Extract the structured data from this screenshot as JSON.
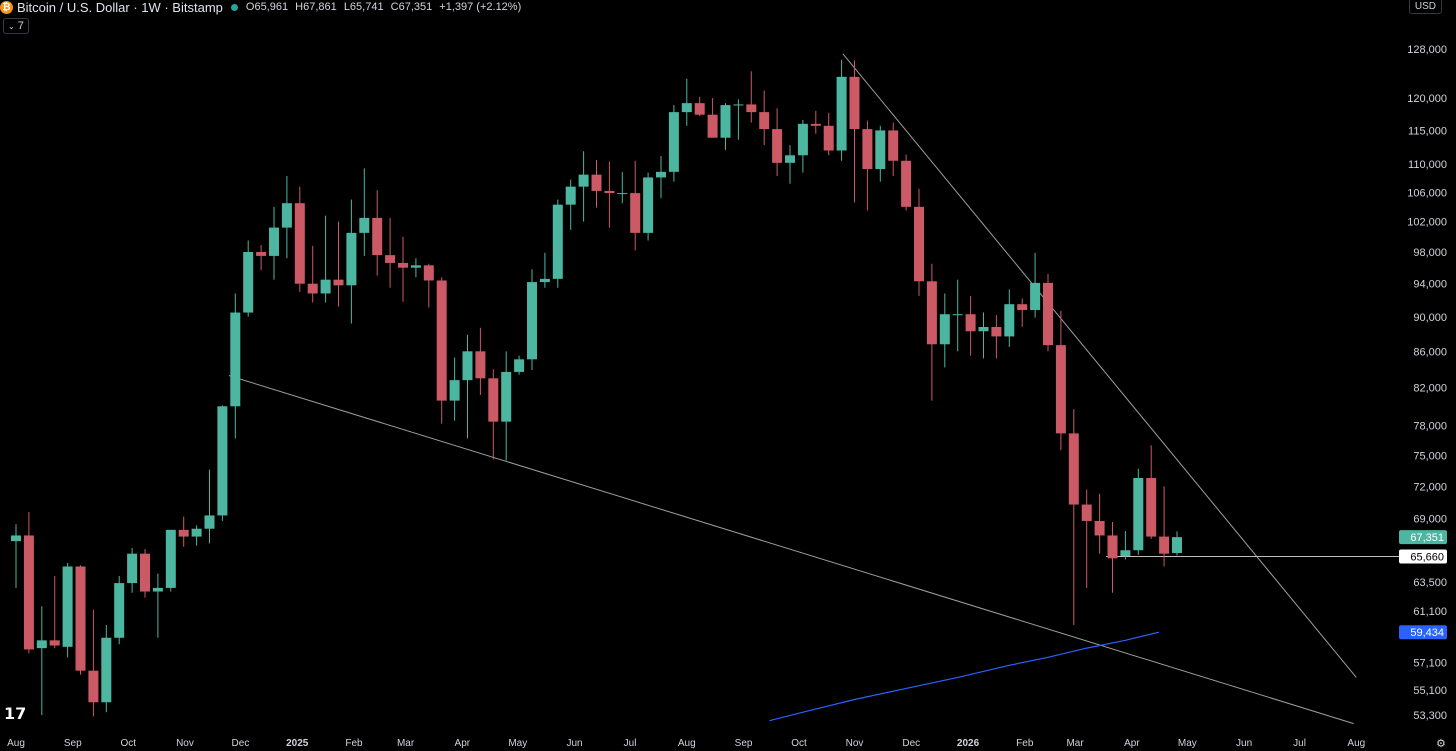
{
  "header": {
    "title": "Bitcoin / U.S. Dollar · 1W · Bitstamp",
    "open": "O65,961",
    "high": "H67,861",
    "low": "L65,741",
    "close": "C67,351",
    "change": "+1,397 (+2.12%)",
    "indicator_count": "7",
    "currency": "USD",
    "icon_text": "₿"
  },
  "colors": {
    "up": "#4db6a0",
    "down": "#cc5966",
    "trend": "#9e9e9e",
    "ma": "#2962ff",
    "background": "#000000"
  },
  "chart_data": {
    "type": "candlestick",
    "title": "Bitcoin / U.S. Dollar · 1W · Bitstamp",
    "y_scale": "log",
    "ylim": [
      52600,
      132000
    ],
    "y_ticks": [
      "128,000",
      "120,000",
      "115,000",
      "110,000",
      "106,000",
      "102,000",
      "98,000",
      "94,000",
      "90,000",
      "86,000",
      "82,000",
      "78,000",
      "75,000",
      "72,000",
      "69,000",
      "63,500",
      "61,100",
      "57,100",
      "55,100",
      "53,300"
    ],
    "x_ticks": [
      "Aug",
      "Sep",
      "Oct",
      "Nov",
      "Dec",
      "2025",
      "Feb",
      "Mar",
      "Apr",
      "May",
      "Jun",
      "Jul",
      "Aug",
      "Sep",
      "Oct",
      "Nov",
      "Dec",
      "2026",
      "Feb",
      "Mar",
      "Apr",
      "May",
      "Jun",
      "Jul",
      "Aug"
    ],
    "x_tick_bold": [
      "2025",
      "2026"
    ],
    "x_tick_weeks": [
      0,
      4.4,
      8.7,
      13.1,
      17.4,
      21.8,
      26.2,
      30.2,
      34.6,
      38.9,
      43.3,
      47.6,
      52.0,
      56.4,
      60.7,
      65.0,
      69.4,
      73.8,
      78.2,
      82.1,
      86.5,
      90.8,
      95.2,
      99.5,
      103.9
    ],
    "candles": [
      {
        "o": 67000,
        "h": 68500,
        "l": 63000,
        "c": 67500
      },
      {
        "o": 67500,
        "h": 69600,
        "l": 57800,
        "c": 58100
      },
      {
        "o": 58200,
        "h": 61500,
        "l": 53300,
        "c": 58800
      },
      {
        "o": 58800,
        "h": 64000,
        "l": 58200,
        "c": 58400
      },
      {
        "o": 58300,
        "h": 65100,
        "l": 57500,
        "c": 64800
      },
      {
        "o": 64800,
        "h": 64900,
        "l": 56200,
        "c": 56500
      },
      {
        "o": 56500,
        "h": 61200,
        "l": 53200,
        "c": 54200
      },
      {
        "o": 54200,
        "h": 60000,
        "l": 53500,
        "c": 59000
      },
      {
        "o": 59000,
        "h": 64000,
        "l": 58500,
        "c": 63400
      },
      {
        "o": 63400,
        "h": 66400,
        "l": 62600,
        "c": 65900
      },
      {
        "o": 65900,
        "h": 66300,
        "l": 62200,
        "c": 62700
      },
      {
        "o": 62700,
        "h": 64200,
        "l": 59000,
        "c": 63000
      },
      {
        "o": 63000,
        "h": 68000,
        "l": 62700,
        "c": 68000
      },
      {
        "o": 68000,
        "h": 69200,
        "l": 66500,
        "c": 67400
      },
      {
        "o": 67400,
        "h": 68400,
        "l": 66600,
        "c": 68100
      },
      {
        "o": 68100,
        "h": 73600,
        "l": 66800,
        "c": 69300
      },
      {
        "o": 69300,
        "h": 80100,
        "l": 68800,
        "c": 80000
      },
      {
        "o": 80000,
        "h": 92800,
        "l": 76700,
        "c": 90500
      },
      {
        "o": 90500,
        "h": 99500,
        "l": 90000,
        "c": 98000
      },
      {
        "o": 98000,
        "h": 98900,
        "l": 95700,
        "c": 97500
      },
      {
        "o": 97500,
        "h": 104000,
        "l": 94500,
        "c": 101200
      },
      {
        "o": 101200,
        "h": 108300,
        "l": 97200,
        "c": 104500
      },
      {
        "o": 104500,
        "h": 106800,
        "l": 93000,
        "c": 94000
      },
      {
        "o": 94000,
        "h": 98800,
        "l": 91700,
        "c": 92800
      },
      {
        "o": 92800,
        "h": 102800,
        "l": 91700,
        "c": 94500
      },
      {
        "o": 94500,
        "h": 102000,
        "l": 91200,
        "c": 93800
      },
      {
        "o": 93800,
        "h": 105000,
        "l": 89200,
        "c": 100500
      },
      {
        "o": 100500,
        "h": 109400,
        "l": 97500,
        "c": 102500
      },
      {
        "o": 102500,
        "h": 106300,
        "l": 95000,
        "c": 97600
      },
      {
        "o": 97600,
        "h": 102500,
        "l": 93500,
        "c": 96600
      },
      {
        "o": 96600,
        "h": 100000,
        "l": 91800,
        "c": 96000
      },
      {
        "o": 96000,
        "h": 97200,
        "l": 94800,
        "c": 96300
      },
      {
        "o": 96300,
        "h": 96500,
        "l": 91100,
        "c": 94400
      },
      {
        "o": 94400,
        "h": 94800,
        "l": 78200,
        "c": 80600
      },
      {
        "o": 80600,
        "h": 85300,
        "l": 78500,
        "c": 82800
      },
      {
        "o": 82800,
        "h": 87900,
        "l": 76700,
        "c": 86000
      },
      {
        "o": 86000,
        "h": 88700,
        "l": 81200,
        "c": 83000
      },
      {
        "o": 83000,
        "h": 84000,
        "l": 74600,
        "c": 78400
      },
      {
        "o": 78400,
        "h": 86000,
        "l": 74500,
        "c": 83700
      },
      {
        "o": 83700,
        "h": 85500,
        "l": 83400,
        "c": 85100
      },
      {
        "o": 85100,
        "h": 95800,
        "l": 83900,
        "c": 94200
      },
      {
        "o": 94200,
        "h": 97900,
        "l": 93500,
        "c": 94600
      },
      {
        "o": 94600,
        "h": 105000,
        "l": 93500,
        "c": 104300
      },
      {
        "o": 104300,
        "h": 107800,
        "l": 100900,
        "c": 106800
      },
      {
        "o": 106800,
        "h": 111900,
        "l": 102000,
        "c": 108500
      },
      {
        "o": 108500,
        "h": 110600,
        "l": 103900,
        "c": 106200
      },
      {
        "o": 106200,
        "h": 110400,
        "l": 101200,
        "c": 105900
      },
      {
        "o": 105900,
        "h": 108900,
        "l": 104500,
        "c": 105900
      },
      {
        "o": 105900,
        "h": 110500,
        "l": 98200,
        "c": 100500
      },
      {
        "o": 100500,
        "h": 108800,
        "l": 99500,
        "c": 108100
      },
      {
        "o": 108100,
        "h": 111200,
        "l": 105200,
        "c": 108900
      },
      {
        "o": 108900,
        "h": 118900,
        "l": 107500,
        "c": 117800
      },
      {
        "o": 117800,
        "h": 123100,
        "l": 115700,
        "c": 119200
      },
      {
        "o": 119200,
        "h": 120200,
        "l": 117200,
        "c": 117400
      },
      {
        "o": 117400,
        "h": 120000,
        "l": 114600,
        "c": 113900
      },
      {
        "o": 113900,
        "h": 119200,
        "l": 112100,
        "c": 118900
      },
      {
        "o": 118900,
        "h": 119800,
        "l": 113600,
        "c": 119000
      },
      {
        "o": 119000,
        "h": 124300,
        "l": 116200,
        "c": 117800
      },
      {
        "o": 117800,
        "h": 121200,
        "l": 112800,
        "c": 115200
      },
      {
        "o": 115200,
        "h": 118400,
        "l": 108300,
        "c": 110200
      },
      {
        "o": 110200,
        "h": 112800,
        "l": 107200,
        "c": 111300
      },
      {
        "o": 111300,
        "h": 116600,
        "l": 108800,
        "c": 116000
      },
      {
        "o": 116000,
        "h": 118000,
        "l": 114500,
        "c": 115700
      },
      {
        "o": 115700,
        "h": 117700,
        "l": 111300,
        "c": 112000
      },
      {
        "o": 112000,
        "h": 126200,
        "l": 110500,
        "c": 123400
      },
      {
        "o": 123400,
        "h": 126100,
        "l": 104600,
        "c": 115200
      },
      {
        "o": 115200,
        "h": 116500,
        "l": 103500,
        "c": 109300
      },
      {
        "o": 109300,
        "h": 115700,
        "l": 107500,
        "c": 115000
      },
      {
        "o": 115000,
        "h": 116200,
        "l": 108300,
        "c": 110500
      },
      {
        "o": 110500,
        "h": 111400,
        "l": 103500,
        "c": 104000
      },
      {
        "o": 104000,
        "h": 106500,
        "l": 92500,
        "c": 94300
      },
      {
        "o": 94300,
        "h": 96500,
        "l": 80600,
        "c": 86800
      },
      {
        "o": 86800,
        "h": 92800,
        "l": 84200,
        "c": 90300
      },
      {
        "o": 90300,
        "h": 94500,
        "l": 86000,
        "c": 90300
      },
      {
        "o": 90300,
        "h": 92500,
        "l": 85500,
        "c": 88300
      },
      {
        "o": 88300,
        "h": 90500,
        "l": 85200,
        "c": 88800
      },
      {
        "o": 88800,
        "h": 90200,
        "l": 85200,
        "c": 87700
      },
      {
        "o": 87700,
        "h": 93300,
        "l": 86500,
        "c": 91500
      },
      {
        "o": 91500,
        "h": 92200,
        "l": 88800,
        "c": 90800
      },
      {
        "o": 90800,
        "h": 97900,
        "l": 89900,
        "c": 94100
      },
      {
        "o": 94100,
        "h": 95200,
        "l": 86000,
        "c": 86700
      },
      {
        "o": 86700,
        "h": 90700,
        "l": 75500,
        "c": 77200
      },
      {
        "o": 77200,
        "h": 79700,
        "l": 60000,
        "c": 70300
      },
      {
        "o": 70300,
        "h": 71700,
        "l": 63000,
        "c": 68800
      },
      {
        "o": 68800,
        "h": 71300,
        "l": 65900,
        "c": 67500
      },
      {
        "o": 67500,
        "h": 68700,
        "l": 62600,
        "c": 65500
      },
      {
        "o": 65700,
        "h": 67900,
        "l": 65400,
        "c": 66200
      },
      {
        "o": 66200,
        "h": 73700,
        "l": 65800,
        "c": 72800
      },
      {
        "o": 72800,
        "h": 76000,
        "l": 67200,
        "c": 67400
      },
      {
        "o": 67400,
        "h": 72000,
        "l": 64800,
        "c": 65900
      },
      {
        "o": 65961,
        "h": 67861,
        "l": 65741,
        "c": 67351
      }
    ],
    "trend_lines": [
      {
        "name": "upper-resistance",
        "points": [
          [
            64.1,
            127200
          ],
          [
            103.9,
            56000
          ]
        ]
      },
      {
        "name": "lower-support",
        "points": [
          [
            16.5,
            83300
          ],
          [
            103.7,
            52700
          ]
        ]
      },
      {
        "name": "horizontal-support",
        "points": [
          [
            84.5,
            65660
          ],
          [
            107.4,
            65660
          ]
        ]
      }
    ],
    "moving_average": [
      [
        58.4,
        52900
      ],
      [
        61,
        53500
      ],
      [
        65,
        54400
      ],
      [
        69,
        55200
      ],
      [
        73,
        56000
      ],
      [
        77,
        56900
      ],
      [
        80,
        57500
      ],
      [
        83,
        58200
      ],
      [
        86,
        58800
      ],
      [
        88.6,
        59434
      ]
    ],
    "price_labels": [
      {
        "label": "67,351",
        "value": 67351,
        "style": "up"
      },
      {
        "label": "65,660",
        "value": 65660,
        "style": "white"
      },
      {
        "label": "59,434",
        "value": 59434,
        "style": "ma"
      }
    ],
    "grid": false,
    "legend": "none"
  }
}
